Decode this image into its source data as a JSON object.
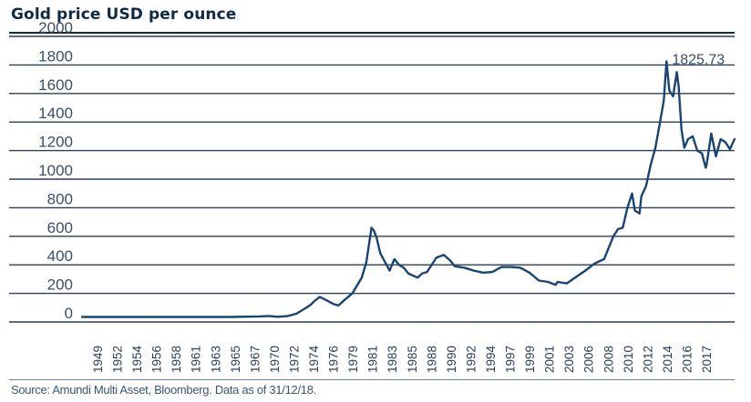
{
  "title": "Gold price USD per ounce",
  "source": "Source: Amundi Multi Asset, Bloomberg. Data as of 31/12/18.",
  "colors": {
    "line": "#1a4474",
    "grid": "#2b3f55",
    "text": "#0e2a47"
  },
  "chart_data": {
    "type": "line",
    "title": "Gold price USD per ounce",
    "xlabel": "",
    "ylabel": "",
    "ylim": [
      0,
      2000
    ],
    "yticks": [
      0,
      200,
      400,
      600,
      800,
      1000,
      1200,
      1400,
      1600,
      1800,
      2000
    ],
    "xtick_labels": [
      "1949",
      "1952",
      "1954",
      "1956",
      "1958",
      "1961",
      "1963",
      "1965",
      "1967",
      "1970",
      "1972",
      "1974",
      "1976",
      "1979",
      "1981",
      "1983",
      "1985",
      "1988",
      "1990",
      "1992",
      "1994",
      "1997",
      "1999",
      "2001",
      "2003",
      "2006",
      "2008",
      "2010",
      "2012",
      "2014",
      "2016",
      "2017"
    ],
    "annotation": {
      "label": "1825.73",
      "x": 2011.7,
      "y": 1825.73
    },
    "series": [
      {
        "name": "Gold price USD per ounce",
        "x": [
          1949,
          1955,
          1960,
          1965,
          1968,
          1969,
          1970,
          1971,
          1972,
          1973,
          1973.5,
          1974,
          1974.5,
          1975,
          1976,
          1976.5,
          1977,
          1978,
          1979,
          1979.5,
          1980.05,
          1980.3,
          1980.6,
          1981,
          1981.5,
          1982,
          1982.5,
          1983,
          1983.5,
          1984,
          1985,
          1985.5,
          1986,
          1987,
          1987.8,
          1988.5,
          1989,
          1990,
          1991,
          1992,
          1993,
          1994,
          1995,
          1996,
          1997,
          1998,
          1999,
          1999.8,
          2000,
          2001,
          2002,
          2003,
          2004,
          2005,
          2006,
          2006.5,
          2007,
          2007.5,
          2008,
          2008.3,
          2008.8,
          2009,
          2009.5,
          2010,
          2010.5,
          2011,
          2011.4,
          2011.7,
          2012,
          2012.4,
          2012.8,
          2013,
          2013.3,
          2013.6,
          2014,
          2014.5,
          2015,
          2015.5,
          2015.9,
          2016,
          2016.5,
          2017,
          2017.5,
          2018,
          2018.5,
          2018.99
        ],
        "values": [
          35,
          35,
          35,
          35,
          39,
          42,
          36,
          41,
          58,
          98,
          120,
          150,
          175,
          160,
          125,
          115,
          145,
          200,
          310,
          420,
          660,
          640,
          590,
          480,
          420,
          360,
          440,
          400,
          380,
          340,
          310,
          340,
          350,
          450,
          470,
          430,
          390,
          380,
          360,
          345,
          350,
          385,
          385,
          380,
          345,
          290,
          280,
          260,
          280,
          270,
          315,
          360,
          410,
          440,
          600,
          650,
          660,
          800,
          900,
          780,
          760,
          880,
          950,
          1100,
          1220,
          1400,
          1550,
          1825.73,
          1620,
          1580,
          1750,
          1650,
          1350,
          1220,
          1280,
          1300,
          1200,
          1180,
          1080,
          1100,
          1320,
          1160,
          1280,
          1260,
          1210,
          1280
        ]
      }
    ]
  }
}
